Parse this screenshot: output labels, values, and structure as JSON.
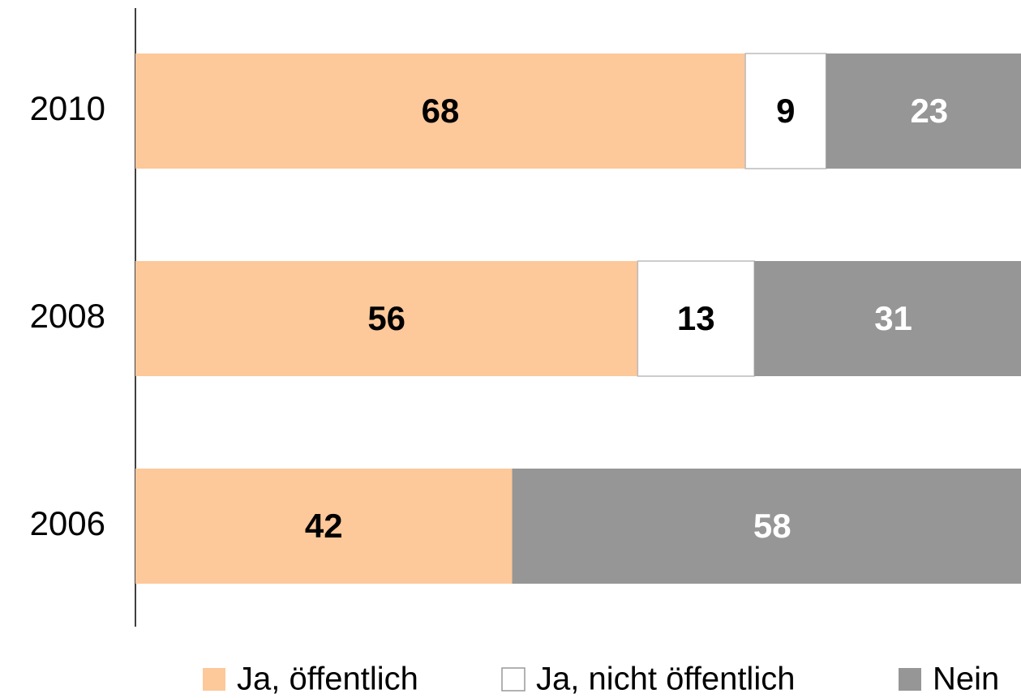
{
  "chart_data": {
    "type": "stacked-bar-horizontal",
    "categories": [
      "2010",
      "2008",
      "2006"
    ],
    "series": [
      {
        "name": "Ja, öffentlich",
        "color": "#fdc89a",
        "values": [
          68,
          56,
          42
        ]
      },
      {
        "name": "Ja, nicht öffentlich",
        "color": "#ffffff",
        "values": [
          9,
          13,
          null
        ]
      },
      {
        "name": "Nein",
        "color": "#969696",
        "values": [
          23,
          31,
          58
        ]
      }
    ],
    "xlim": [
      0,
      100
    ]
  }
}
